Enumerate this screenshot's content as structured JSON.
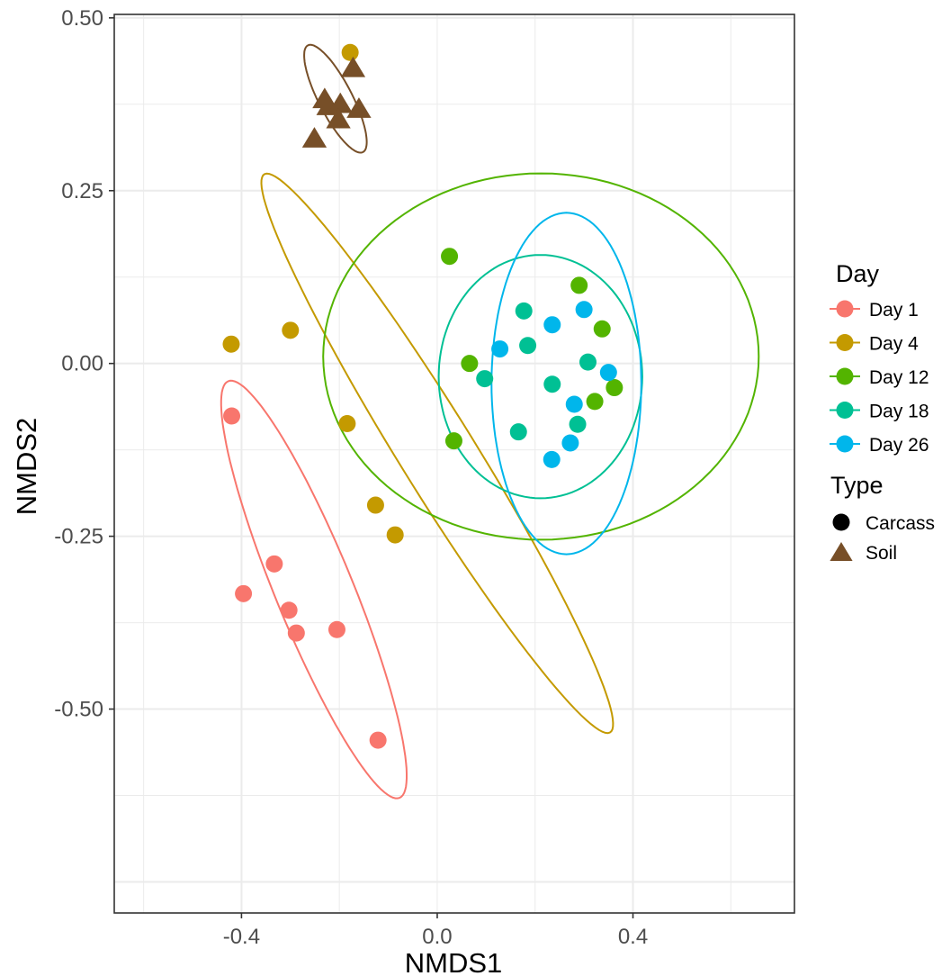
{
  "chart_data": {
    "type": "scatter",
    "xlabel": "NMDS1",
    "ylabel": "NMDS2",
    "xlim": [
      -0.66,
      0.73
    ],
    "ylim": [
      -0.795,
      0.505
    ],
    "x_ticks": [
      -0.4,
      0.0,
      0.4
    ],
    "x_tick_labels": [
      "-0.4",
      "0.0",
      "0.4"
    ],
    "y_ticks": [
      -0.5,
      -0.25,
      0.0,
      0.25,
      0.5
    ],
    "y_tick_labels": [
      "-0.50",
      "-0.25",
      "0.00",
      "0.25",
      "0.50"
    ],
    "grid": true,
    "legend_position": "right",
    "legends": {
      "day": {
        "title": "Day",
        "entries": [
          {
            "label": "Day 1",
            "color": "#F8766D"
          },
          {
            "label": "Day 4",
            "color": "#C49A00"
          },
          {
            "label": "Day 12",
            "color": "#53B400"
          },
          {
            "label": "Day 18",
            "color": "#00C094"
          },
          {
            "label": "Day 26",
            "color": "#00B6EB"
          }
        ]
      },
      "type": {
        "title": "Type",
        "entries": [
          {
            "label": "Carcass",
            "shape": "circle",
            "color": "#000000"
          },
          {
            "label": "Soil",
            "shape": "triangle",
            "color": "#774F28"
          }
        ]
      }
    },
    "series": [
      {
        "day": "Day 1",
        "type": "Carcass",
        "color": "#F8766D",
        "points": [
          [
            -0.42,
            -0.076
          ],
          [
            -0.333,
            -0.29
          ],
          [
            -0.396,
            -0.333
          ],
          [
            -0.303,
            -0.357
          ],
          [
            -0.288,
            -0.39
          ],
          [
            -0.205,
            -0.385
          ],
          [
            -0.121,
            -0.545
          ]
        ]
      },
      {
        "day": "Day 4",
        "type": "Carcass",
        "color": "#C49A00",
        "points": [
          [
            -0.421,
            0.028
          ],
          [
            -0.3,
            0.048
          ],
          [
            -0.184,
            -0.087
          ],
          [
            -0.126,
            -0.205
          ],
          [
            -0.086,
            -0.248
          ],
          [
            -0.178,
            0.45
          ]
        ]
      },
      {
        "day": "Day 12",
        "type": "Carcass",
        "color": "#53B400",
        "points": [
          [
            0.025,
            0.155
          ],
          [
            0.066,
            0.0
          ],
          [
            0.034,
            -0.112
          ],
          [
            0.29,
            0.113
          ],
          [
            0.337,
            0.05
          ],
          [
            0.322,
            -0.055
          ],
          [
            0.362,
            -0.035
          ]
        ]
      },
      {
        "day": "Day 18",
        "type": "Carcass",
        "color": "#00C094",
        "points": [
          [
            0.177,
            0.076
          ],
          [
            0.097,
            -0.022
          ],
          [
            0.185,
            0.026
          ],
          [
            0.166,
            -0.099
          ],
          [
            0.235,
            -0.03
          ],
          [
            0.308,
            0.002
          ],
          [
            0.287,
            -0.088
          ]
        ]
      },
      {
        "day": "Day 26",
        "type": "Carcass",
        "color": "#00B6EB",
        "points": [
          [
            0.128,
            0.021
          ],
          [
            0.235,
            0.056
          ],
          [
            0.3,
            0.078
          ],
          [
            0.35,
            -0.013
          ],
          [
            0.28,
            -0.059
          ],
          [
            0.272,
            -0.115
          ],
          [
            0.234,
            -0.139
          ]
        ]
      },
      {
        "day": "Soil",
        "type": "Soil",
        "color": "#774F28",
        "points": [
          [
            -0.172,
            0.427
          ],
          [
            -0.23,
            0.382
          ],
          [
            -0.222,
            0.372
          ],
          [
            -0.198,
            0.375
          ],
          [
            -0.16,
            0.368
          ],
          [
            -0.202,
            0.353
          ],
          [
            -0.251,
            0.325
          ]
        ]
      }
    ],
    "ellipses": [
      {
        "day": "Day 1",
        "color": "#F8766D",
        "cx": -0.252,
        "cy": -0.327,
        "rx": 0.349,
        "ry": 0.074,
        "angle_deg": 120.8
      },
      {
        "day": "Day 4",
        "color": "#C49A00",
        "cx": 0.0,
        "cy": -0.13,
        "rx": 0.537,
        "ry": 0.068,
        "angle_deg": 131.5
      },
      {
        "day": "Day 12",
        "color": "#53B400",
        "cx": 0.212,
        "cy": 0.01,
        "rx": 0.445,
        "ry": 0.265,
        "angle_deg": 0
      },
      {
        "day": "Day 18",
        "color": "#00C094",
        "cx": 0.211,
        "cy": -0.019,
        "rx": 0.208,
        "ry": 0.176,
        "angle_deg": 0
      },
      {
        "day": "Day 26",
        "color": "#00B6EB",
        "cx": 0.264,
        "cy": -0.029,
        "rx": 0.153,
        "ry": 0.247,
        "angle_deg": 0
      },
      {
        "day": "Soil",
        "color": "#774F28",
        "cx": -0.208,
        "cy": 0.383,
        "rx": 0.096,
        "ry": 0.031,
        "angle_deg": 128
      }
    ]
  }
}
